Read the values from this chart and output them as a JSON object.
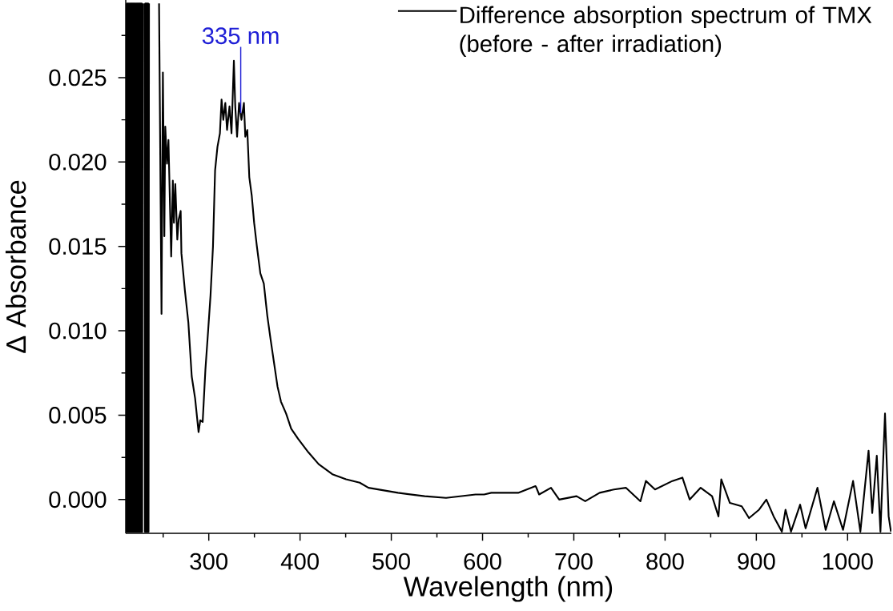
{
  "chart_data": {
    "type": "line",
    "xlabel": "Wavelength (nm)",
    "ylabel": "Δ Absorbance",
    "x": [
      209.5,
      210,
      210.5,
      211,
      211.5,
      212,
      212.5,
      213,
      213.5,
      214,
      214.5,
      215,
      215.5,
      216,
      216.5,
      217,
      217.5,
      218,
      218.5,
      219,
      219.5,
      220,
      220.5,
      221,
      221.5,
      222,
      222.5,
      223,
      223.5,
      224,
      224.5,
      225,
      225.5,
      226,
      226.5,
      227,
      227.5,
      228.5,
      229.5,
      230,
      230.5,
      231,
      231.5,
      232,
      232.5,
      233,
      233.5,
      234,
      234.5,
      240,
      245.5,
      246.7,
      248.2,
      249.7,
      251.3,
      252.3,
      254.2,
      255.8,
      258.8,
      260.6,
      261.8,
      263.3,
      265.5,
      267,
      269.2,
      270,
      273.8,
      277.6,
      281.3,
      285,
      288.8,
      290.7,
      293.3,
      296.3,
      299.4,
      301.9,
      304.6,
      306.9,
      309.5,
      312.2,
      314,
      315.9,
      318.1,
      320,
      322.7,
      324.9,
      327.5,
      329,
      331,
      333.2,
      335.8,
      338.5,
      340,
      342.2,
      344.4,
      347.1,
      349.7,
      352.7,
      356.5,
      360.3,
      364.1,
      367.7,
      371.5,
      375.3,
      379.1,
      384.7,
      390.3,
      397.8,
      409.1,
      420.4,
      435.4,
      450.4,
      465.4,
      475,
      507.3,
      536.6,
      560,
      592.3,
      601.7,
      609.6,
      639,
      658,
      659,
      662,
      675,
      684,
      703,
      712.5,
      728.3,
      744,
      757,
      773,
      779,
      789,
      808,
      819,
      827,
      839,
      851.5,
      858.5,
      861.6,
      871,
      884,
      892,
      903,
      911,
      919,
      928,
      932,
      938,
      948,
      954,
      967,
      976,
      985,
      995,
      1006,
      1014,
      1023,
      1027,
      1032,
      1036,
      1041,
      1045,
      1047.5
    ],
    "series": [
      {
        "name": "Difference absorption spectrum of TMX (before - after irradiation)",
        "color": "#000000",
        "values": [
          0.0294,
          -0.0019,
          0.0294,
          -0.0019,
          0.0294,
          -0.0019,
          0.0294,
          -0.0019,
          0.0294,
          -0.0019,
          0.0294,
          -0.0019,
          0.0294,
          -0.0019,
          0.0294,
          -0.0019,
          0.0294,
          -0.0019,
          0.0294,
          -0.0019,
          0.0294,
          -0.0019,
          0.0294,
          -0.0019,
          0.0294,
          -0.0019,
          0.0294,
          -0.0019,
          0.0294,
          -0.0019,
          0.0294,
          -0.0019,
          0.0294,
          -0.0019,
          0.0294,
          -0.0019,
          0.0294,
          null,
          0.0294,
          -0.0019,
          0.0294,
          -0.0019,
          0.0294,
          -0.0019,
          0.0294,
          -0.0019,
          0.0294,
          -0.0019,
          0.0294,
          null,
          0.0294,
          0.0213,
          0.011,
          0.0253,
          0.0156,
          0.0221,
          0.0199,
          0.0213,
          0.0144,
          0.0189,
          0.0164,
          0.0187,
          0.0154,
          0.0166,
          0.0171,
          0.0146,
          0.0124,
          0.0105,
          0.0073,
          0.006,
          0.004,
          0.0047,
          0.0046,
          0.0077,
          0.0101,
          0.0121,
          0.015,
          0.0195,
          0.0209,
          0.0217,
          0.0237,
          0.0225,
          0.0235,
          0.0219,
          0.0233,
          0.0217,
          0.026,
          0.0233,
          0.0215,
          0.0235,
          0.0225,
          0.0235,
          0.0215,
          0.0219,
          0.0191,
          0.018,
          0.0164,
          0.015,
          0.0134,
          0.0128,
          0.0109,
          0.0095,
          0.0081,
          0.0067,
          0.0058,
          0.0051,
          0.0042,
          0.0036,
          0.0028,
          0.0021,
          0.0015,
          0.0012,
          0.001,
          0.0007,
          0.0004,
          0.0002,
          0.0001,
          0.0003,
          0.0003,
          0.0004,
          0.0004,
          0.0008,
          0.0007,
          0.0003,
          0.0007,
          0.0,
          0.0002,
          -0.0001,
          0.0004,
          0.0006,
          0.0007,
          -0.0001,
          0.0011,
          0.0006,
          0.0011,
          0.0013,
          0.0,
          0.0007,
          0.0002,
          -0.001,
          0.0012,
          -0.0002,
          -0.0004,
          -0.0011,
          -0.0006,
          0.0,
          -0.001,
          -0.0019,
          -0.0006,
          -0.0019,
          -0.0003,
          -0.0017,
          0.0007,
          -0.0018,
          -0.0001,
          -0.0018,
          0.0011,
          -0.0019,
          0.0029,
          -0.0008,
          0.0026,
          -0.0019,
          0.0051,
          -0.001,
          -0.0019
        ]
      }
    ],
    "xlim": [
      209,
      1048
    ],
    "xticks": [
      300,
      400,
      500,
      600,
      700,
      800,
      900,
      1000
    ],
    "ylim": [
      -0.002,
      0.0296
    ],
    "yticks": [
      {
        "value": 0,
        "label": "0.000"
      },
      {
        "value": 0.005,
        "label": "0.005"
      },
      {
        "value": 0.01,
        "label": "0.010"
      },
      {
        "value": 0.015,
        "label": "0.015"
      },
      {
        "value": 0.02,
        "label": "0.020"
      },
      {
        "value": 0.025,
        "label": "0.025"
      }
    ],
    "annotations": [
      {
        "text": "335 nm",
        "x": 335,
        "y": 0.0229
      }
    ],
    "legend": "top right",
    "line_style": "solid"
  }
}
